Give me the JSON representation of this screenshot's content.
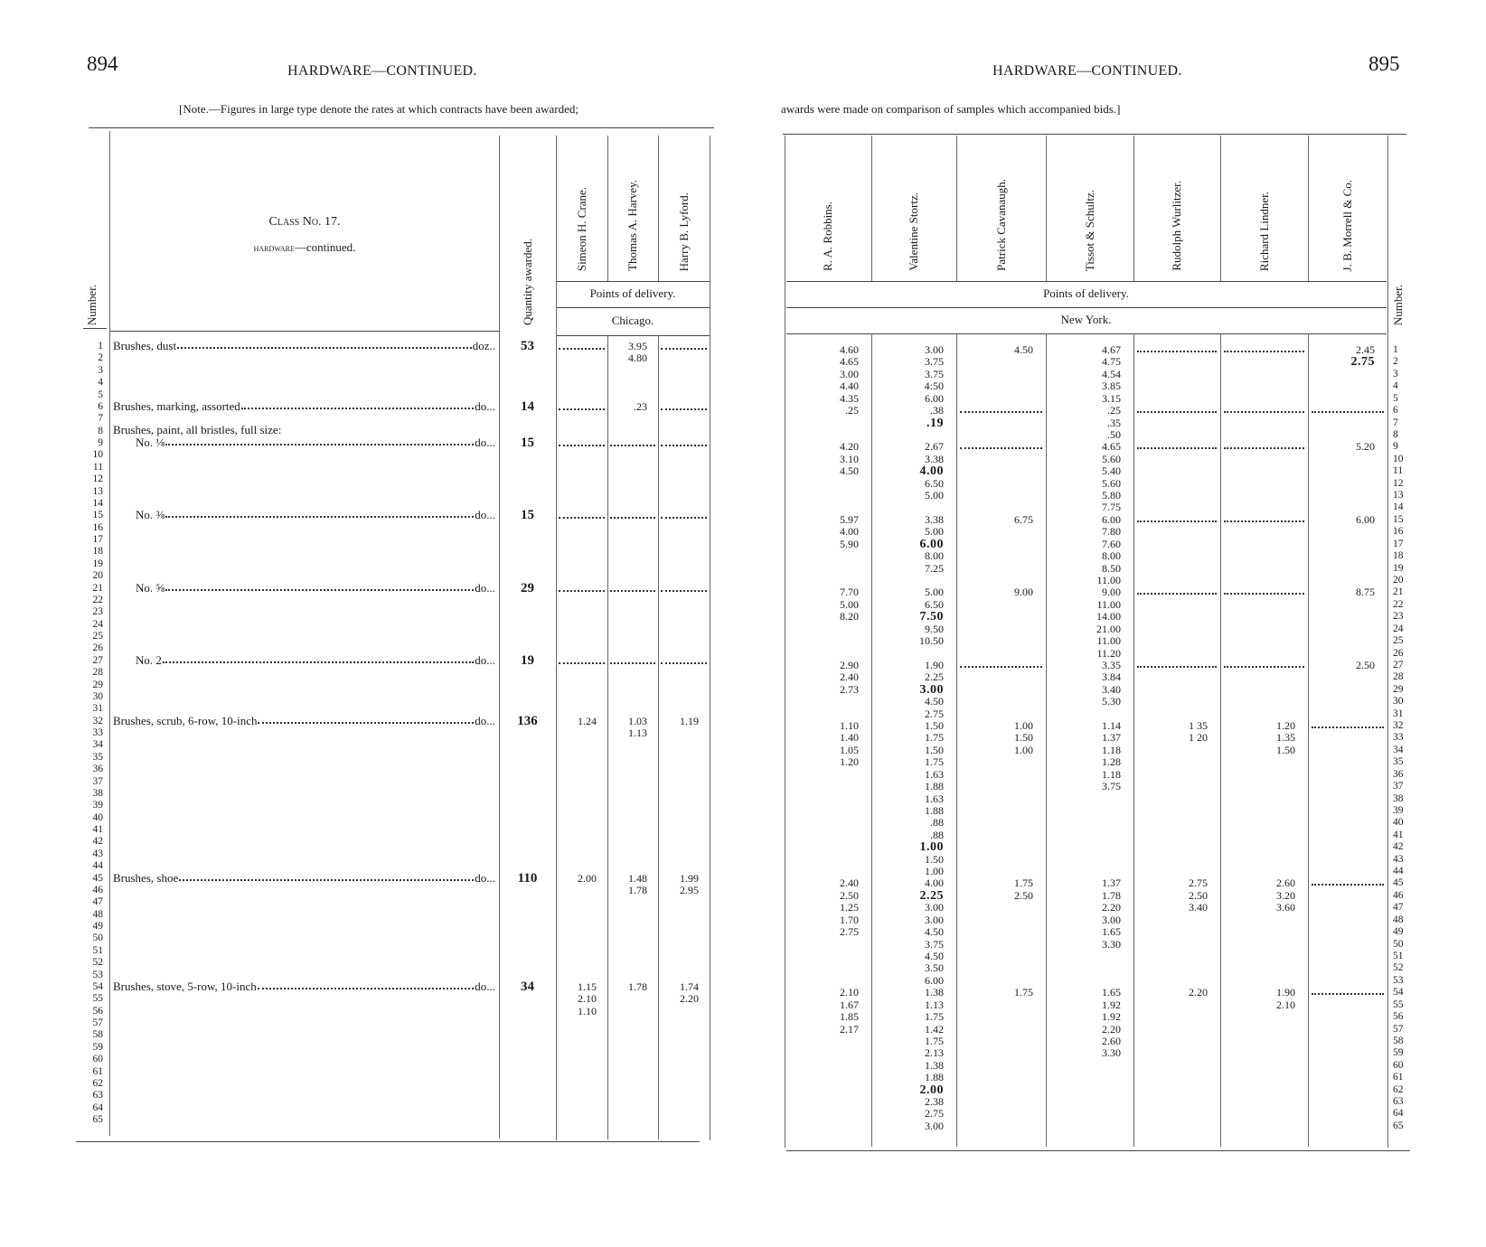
{
  "left": {
    "page_number": "894",
    "title": "HARDWARE—CONTINUED.",
    "note": "[Note.—Figures in large type denote the rates at which contracts have been awarded;",
    "headers": {
      "number": "Number.",
      "class_line": "Class No. 17.",
      "class_sub_caps": "hardware",
      "class_sub_rest": "—continued.",
      "quantity": "Quantity awarded.",
      "points_of_delivery": "Points of delivery.",
      "city": "Chicago."
    },
    "items": [
      {
        "row": 1,
        "label": "Brushes, dust",
        "unit": "doz..",
        "qty": "53",
        "indent": false
      },
      {
        "row": 6,
        "label": "Brushes, marking, assorted",
        "unit": "do...",
        "qty": "14",
        "indent": false
      },
      {
        "row": 9,
        "label": "No. ⅛",
        "unit": "do...",
        "qty": "15",
        "indent": true
      },
      {
        "row": 15,
        "label": "No. ⅜",
        "unit": "do...",
        "qty": "15",
        "indent": true
      },
      {
        "row": 21,
        "label": "No. ⅝",
        "unit": "do...",
        "qty": "29",
        "indent": true
      },
      {
        "row": 27,
        "label": "No. 2",
        "unit": "do...",
        "qty": "19",
        "indent": true
      },
      {
        "row": 32,
        "label": "Brushes, scrub, 6-row, 10-inch",
        "unit": "do...",
        "qty": "136",
        "indent": false
      },
      {
        "row": 45,
        "label": "Brushes, shoe",
        "unit": "do...",
        "qty": "110",
        "indent": false
      },
      {
        "row": 54,
        "label": "Brushes, stove, 5-row, 10-inch",
        "unit": "do...",
        "qty": "34",
        "indent": false
      }
    ],
    "group_heading": {
      "row": 8.6,
      "label": "Brushes, paint, all bristles, full size:"
    },
    "columns": [
      {
        "name": "Simeon H. Crane.",
        "dots": [
          1,
          6,
          9,
          15,
          21,
          27
        ],
        "cells": [
          [
            32,
            "1.24"
          ],
          [
            45,
            "2.00"
          ],
          [
            54,
            "1.15"
          ],
          [
            55,
            "2.10"
          ],
          [
            56,
            "1.10"
          ]
        ]
      },
      {
        "name": "Thomas A. Harvey.",
        "dots": [
          9,
          15,
          21,
          27
        ],
        "cells": [
          [
            1,
            "3.95"
          ],
          [
            2,
            "4.80"
          ],
          [
            6,
            ".23"
          ],
          [
            32,
            "1.03"
          ],
          [
            33,
            "1.13"
          ],
          [
            45,
            "1.48"
          ],
          [
            46,
            "1.78"
          ],
          [
            54,
            "1.78"
          ]
        ]
      },
      {
        "name": "Harry B. Lyford.",
        "dots": [
          1,
          6,
          9,
          15,
          21,
          27
        ],
        "cells": [
          [
            32,
            "1.19"
          ],
          [
            45,
            "1.99"
          ],
          [
            46,
            "2.95"
          ],
          [
            54,
            "1.74"
          ],
          [
            55,
            "2.20"
          ]
        ]
      }
    ]
  },
  "right": {
    "page_number": "895",
    "title": "HARDWARE—CONTINUED.",
    "note": "awards were made on comparison of samples which accompanied bids.]",
    "headers": {
      "number": "Number.",
      "points_of_delivery": "Points of delivery.",
      "city": "New York."
    },
    "columns": [
      {
        "name": "R. A. Robbins.",
        "dots": [],
        "cells": [
          [
            1,
            "4.60"
          ],
          [
            2,
            "4.65"
          ],
          [
            3,
            "3.00"
          ],
          [
            4,
            "4.40"
          ],
          [
            5,
            "4.35"
          ],
          [
            6,
            ".25"
          ],
          [
            9,
            "4.20"
          ],
          [
            10,
            "3.10"
          ],
          [
            11,
            "4.50"
          ],
          [
            15,
            "5.97"
          ],
          [
            16,
            "4.00"
          ],
          [
            17,
            "5.90"
          ],
          [
            21,
            "7.70"
          ],
          [
            22,
            "5.00"
          ],
          [
            23,
            "8.20"
          ],
          [
            27,
            "2.90"
          ],
          [
            28,
            "2.40"
          ],
          [
            29,
            "2.73"
          ],
          [
            32,
            "1.10"
          ],
          [
            33,
            "1.40"
          ],
          [
            34,
            "1.05"
          ],
          [
            35,
            "1.20"
          ],
          [
            45,
            "2.40"
          ],
          [
            46,
            "2.50"
          ],
          [
            47,
            "1.25"
          ],
          [
            48,
            "1.70"
          ],
          [
            49,
            "2.75"
          ],
          [
            54,
            "2.10"
          ],
          [
            55,
            "1.67"
          ],
          [
            56,
            "1.85"
          ],
          [
            57,
            "2.17"
          ]
        ]
      },
      {
        "name": "Valentine Stortz.",
        "dots": [],
        "cells": [
          [
            1,
            "3.00"
          ],
          [
            2,
            "3.75"
          ],
          [
            3,
            "3.75"
          ],
          [
            4,
            "4:50"
          ],
          [
            5,
            "6.00"
          ],
          [
            6,
            ".38"
          ],
          [
            7,
            ".19",
            1
          ],
          [
            9,
            "2.67"
          ],
          [
            10,
            "3.38"
          ],
          [
            11,
            "4.00",
            1
          ],
          [
            12,
            "6.50"
          ],
          [
            13,
            "5.00"
          ],
          [
            15,
            "3.38"
          ],
          [
            16,
            "5.00"
          ],
          [
            17,
            "6.00",
            1
          ],
          [
            18,
            "8.00"
          ],
          [
            19,
            "7.25"
          ],
          [
            21,
            "5.00"
          ],
          [
            22,
            "6.50"
          ],
          [
            23,
            "7.50",
            1
          ],
          [
            24,
            "9.50"
          ],
          [
            25,
            "10.50"
          ],
          [
            27,
            "1.90"
          ],
          [
            28,
            "2.25"
          ],
          [
            29,
            "3.00",
            1
          ],
          [
            30,
            "4.50"
          ],
          [
            31,
            "2.75"
          ],
          [
            32,
            "1.50"
          ],
          [
            33,
            "1.75"
          ],
          [
            34,
            "1.50"
          ],
          [
            35,
            "1.75"
          ],
          [
            36,
            "1.63"
          ],
          [
            37,
            "1.88"
          ],
          [
            38,
            "1.63"
          ],
          [
            39,
            "1.88"
          ],
          [
            40,
            ".88"
          ],
          [
            41,
            ".88"
          ],
          [
            42,
            "1.00",
            1
          ],
          [
            43,
            "1.50"
          ],
          [
            44,
            "1.00"
          ],
          [
            45,
            "4.00"
          ],
          [
            46,
            "2.25",
            1
          ],
          [
            47,
            "3.00"
          ],
          [
            48,
            "3.00"
          ],
          [
            49,
            "4.50"
          ],
          [
            50,
            "3.75"
          ],
          [
            51,
            "4.50"
          ],
          [
            52,
            "3.50"
          ],
          [
            53,
            "6.00"
          ],
          [
            54,
            "1.38"
          ],
          [
            55,
            "1.13"
          ],
          [
            56,
            "1.75"
          ],
          [
            57,
            "1.42"
          ],
          [
            58,
            "1.75"
          ],
          [
            59,
            "2.13"
          ],
          [
            60,
            "1.38"
          ],
          [
            61,
            "1.88"
          ],
          [
            62,
            "2.00",
            1
          ],
          [
            63,
            "2.38"
          ],
          [
            64,
            "2.75"
          ],
          [
            65,
            "3.00"
          ]
        ]
      },
      {
        "name": "Patrick Cavanaugh.",
        "dots": [
          6,
          9,
          27
        ],
        "cells": [
          [
            1,
            "4.50"
          ],
          [
            15,
            "6.75"
          ],
          [
            21,
            "9.00"
          ],
          [
            32,
            "1.00"
          ],
          [
            33,
            "1.50"
          ],
          [
            34,
            "1.00"
          ],
          [
            45,
            "1.75"
          ],
          [
            46,
            "2.50"
          ],
          [
            54,
            "1.75"
          ]
        ]
      },
      {
        "name": "Tissot & Schultz.",
        "dots": [],
        "cells": [
          [
            1,
            "4.67"
          ],
          [
            2,
            "4.75"
          ],
          [
            3,
            "4.54"
          ],
          [
            4,
            "3.85"
          ],
          [
            5,
            "3.15"
          ],
          [
            6,
            ".25"
          ],
          [
            7,
            ".35"
          ],
          [
            8,
            ".50"
          ],
          [
            9,
            "4.65"
          ],
          [
            10,
            "5.60"
          ],
          [
            11,
            "5.40"
          ],
          [
            12,
            "5.60"
          ],
          [
            13,
            "5.80"
          ],
          [
            14,
            "7.75"
          ],
          [
            15,
            "6.00"
          ],
          [
            16,
            "7.80"
          ],
          [
            17,
            "7.60"
          ],
          [
            18,
            "8.00"
          ],
          [
            19,
            "8.50"
          ],
          [
            20,
            "11.00"
          ],
          [
            21,
            "9.00"
          ],
          [
            22,
            "11.00"
          ],
          [
            23,
            "14.00"
          ],
          [
            24,
            "21.00"
          ],
          [
            25,
            "11.00"
          ],
          [
            26,
            "11.20"
          ],
          [
            27,
            "3.35"
          ],
          [
            28,
            "3.84"
          ],
          [
            29,
            "3.40"
          ],
          [
            30,
            "5.30"
          ],
          [
            32,
            "1.14"
          ],
          [
            33,
            "1.37"
          ],
          [
            34,
            "1.18"
          ],
          [
            35,
            "1.28"
          ],
          [
            36,
            "1.18"
          ],
          [
            37,
            "3.75"
          ],
          [
            45,
            "1.37"
          ],
          [
            46,
            "1.78"
          ],
          [
            47,
            "2.20"
          ],
          [
            48,
            "3.00"
          ],
          [
            49,
            "1.65"
          ],
          [
            50,
            "3.30"
          ],
          [
            54,
            "1.65"
          ],
          [
            55,
            "1.92"
          ],
          [
            56,
            "1.92"
          ],
          [
            57,
            "2.20"
          ],
          [
            58,
            "2.60"
          ],
          [
            59,
            "3.30"
          ]
        ]
      },
      {
        "name": "Rudolph Wurlitzer.",
        "dots": [
          1,
          6,
          9,
          15,
          21,
          27
        ],
        "cells": [
          [
            32,
            "1 35"
          ],
          [
            33,
            "1 20"
          ],
          [
            45,
            "2.75"
          ],
          [
            46,
            "2.50"
          ],
          [
            47,
            "3.40"
          ],
          [
            54,
            "2.20"
          ]
        ]
      },
      {
        "name": "Richard Lindner.",
        "dots": [
          1,
          6,
          9,
          15,
          21,
          27
        ],
        "cells": [
          [
            32,
            "1.20"
          ],
          [
            33,
            "1.35"
          ],
          [
            34,
            "1.50"
          ],
          [
            45,
            "2.60"
          ],
          [
            46,
            "3.20"
          ],
          [
            47,
            "3.60"
          ],
          [
            54,
            "1.90"
          ],
          [
            55,
            "2.10"
          ]
        ]
      },
      {
        "name": "J. B. Morrell & Co.",
        "dots": [
          6,
          32,
          45,
          54
        ],
        "cells": [
          [
            1,
            "2.45"
          ],
          [
            2,
            "2.75",
            1
          ],
          [
            9,
            "5.20"
          ],
          [
            15,
            "6.00"
          ],
          [
            21,
            "8.75"
          ],
          [
            27,
            "2.50"
          ]
        ]
      }
    ]
  },
  "row_count": 65
}
